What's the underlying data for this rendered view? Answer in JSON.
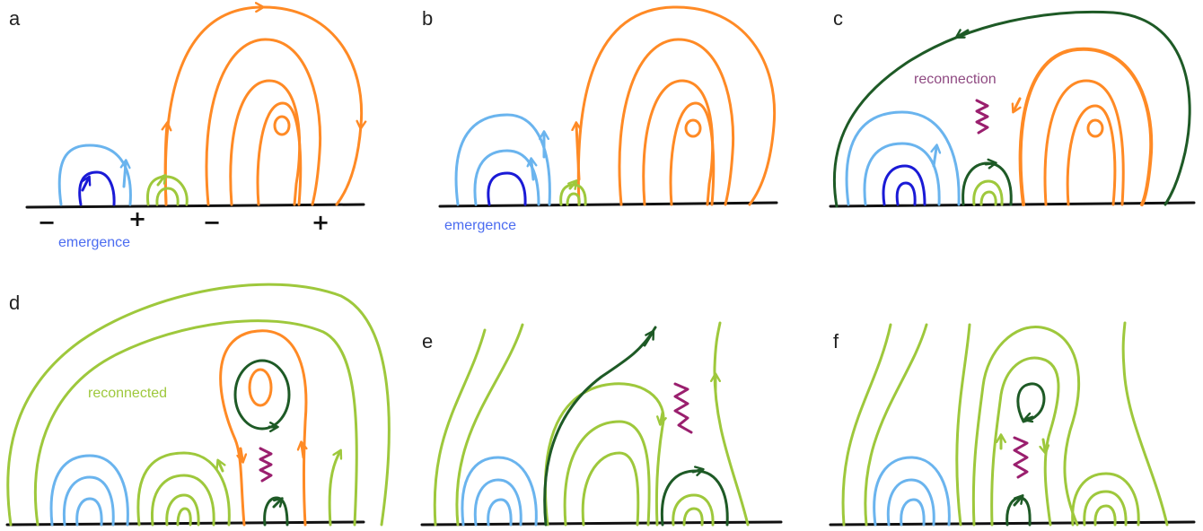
{
  "colors": {
    "dark_blue": "#1a1ad6",
    "light_blue": "#6ab4ee",
    "orange": "#ff8a25",
    "light_green": "#9ec83c",
    "dark_green": "#1e5a26",
    "purple": "#9a1f6e",
    "ground": "#111111"
  },
  "panels": {
    "a": {
      "letter": "a",
      "polarity": [
        "−",
        "+",
        "−",
        "+"
      ],
      "label": "emergence"
    },
    "b": {
      "letter": "b",
      "label": "emergence"
    },
    "c": {
      "letter": "c",
      "label": "reconnection"
    },
    "d": {
      "letter": "d",
      "label": "reconnected"
    },
    "e": {
      "letter": "e"
    },
    "f": {
      "letter": "f"
    }
  }
}
